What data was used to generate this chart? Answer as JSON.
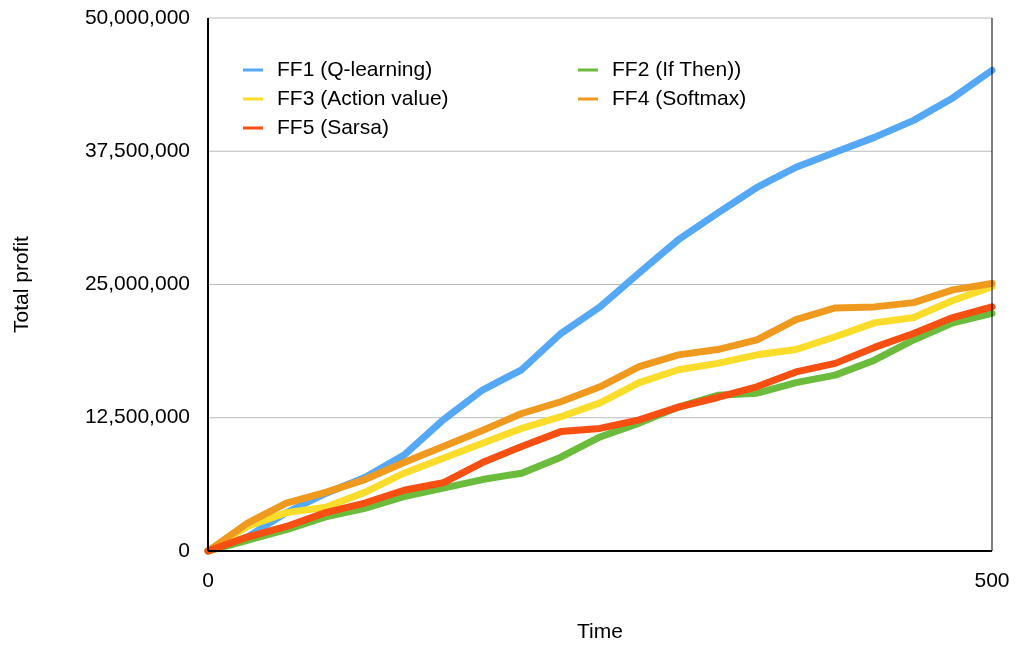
{
  "chart_data": {
    "type": "line",
    "xlabel": "Time",
    "ylabel": "Total profit",
    "x": [
      0,
      25,
      50,
      75,
      100,
      125,
      150,
      175,
      200,
      225,
      250,
      275,
      300,
      325,
      350,
      375,
      400,
      425,
      450,
      475,
      500
    ],
    "series": [
      {
        "name": "FF1 (Q-learning)",
        "color": "#55a8f5",
        "values": [
          0,
          1300000,
          3600000,
          5400000,
          6900000,
          9000000,
          12300000,
          15100000,
          17000000,
          20400000,
          22900000,
          26100000,
          29200000,
          31700000,
          34100000,
          36000000,
          37400000,
          38800000,
          40400000,
          42500000,
          45100000
        ]
      },
      {
        "name": "FF2 (If Then))",
        "color": "#6bbb3c",
        "values": [
          0,
          1000000,
          2000000,
          3200000,
          4000000,
          5100000,
          5900000,
          6700000,
          7300000,
          8800000,
          10700000,
          12000000,
          13500000,
          14600000,
          14800000,
          15800000,
          16500000,
          17900000,
          19800000,
          21400000,
          22300000
        ]
      },
      {
        "name": "FF3 (Action value)",
        "color": "#f9dd2a",
        "values": [
          0,
          2300000,
          3600000,
          4100000,
          5500000,
          7300000,
          8700000,
          10100000,
          11500000,
          12600000,
          13900000,
          15800000,
          17000000,
          17600000,
          18400000,
          18900000,
          20100000,
          21400000,
          21900000,
          23500000,
          24800000
        ]
      },
      {
        "name": "FF4 (Softmax)",
        "color": "#ef9a1f",
        "values": [
          0,
          2600000,
          4500000,
          5500000,
          6700000,
          8300000,
          9800000,
          11300000,
          12900000,
          14000000,
          15400000,
          17300000,
          18400000,
          18900000,
          19800000,
          21700000,
          22800000,
          22900000,
          23300000,
          24500000,
          25100000
        ]
      },
      {
        "name": "FF5 (Sarsa)",
        "color": "#f74e12",
        "values": [
          0,
          1300000,
          2300000,
          3600000,
          4500000,
          5700000,
          6400000,
          8300000,
          9800000,
          11200000,
          11500000,
          12300000,
          13500000,
          14400000,
          15400000,
          16800000,
          17600000,
          19100000,
          20400000,
          21900000,
          22900000
        ]
      }
    ],
    "xlim": [
      0,
      500
    ],
    "xticks": [
      0,
      500
    ],
    "ylim": [
      0,
      50000000
    ],
    "yticks": [
      {
        "value": 0,
        "label": "0"
      },
      {
        "value": 12500000,
        "label": "12,500,000"
      },
      {
        "value": 25000000,
        "label": "25,000,000"
      },
      {
        "value": 37500000,
        "label": "37,500,000"
      },
      {
        "value": 50000000,
        "label": "50,000,000"
      }
    ],
    "grid": "y",
    "legend": "top left",
    "line_style": "solid"
  }
}
